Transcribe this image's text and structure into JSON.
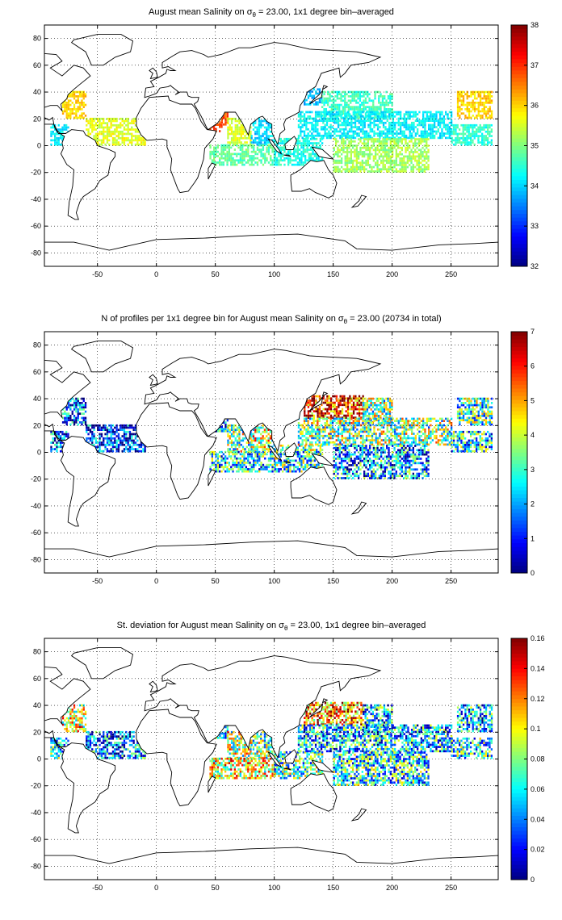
{
  "chart_data": [
    {
      "type": "heatmap",
      "title": "August mean Salinity onσθ = 23.00, 1x1 degree bin–averaged",
      "title_parts": {
        "pre": "August mean Salinity on ",
        "sigma": "σ",
        "sub": "θ",
        "post": " = 23.00, 1x1 degree bin–averaged"
      },
      "xlim": [
        -95,
        290
      ],
      "ylim": [
        -90,
        90
      ],
      "xticks": [
        -50,
        0,
        50,
        100,
        150,
        200,
        250
      ],
      "yticks": [
        -80,
        -60,
        -40,
        -20,
        0,
        20,
        40,
        60,
        80
      ],
      "grid": true,
      "colorbar": {
        "range": [
          32,
          38
        ],
        "ticks": [
          32,
          33,
          34,
          35,
          36,
          37,
          38
        ],
        "colormap": "jet"
      },
      "regions": [
        {
          "lon": [
            -80,
            -60
          ],
          "lat": [
            20,
            40
          ],
          "value": 36.0
        },
        {
          "lon": [
            -90,
            -75
          ],
          "lat": [
            0,
            15
          ],
          "value": 34.2
        },
        {
          "lon": [
            -60,
            -10
          ],
          "lat": [
            0,
            20
          ],
          "value": 35.6
        },
        {
          "lon": [
            50,
            60
          ],
          "lat": [
            15,
            25
          ],
          "value": 36.8
        },
        {
          "lon": [
            45,
            55
          ],
          "lat": [
            10,
            15
          ],
          "value": 37.0
        },
        {
          "lon": [
            60,
            80
          ],
          "lat": [
            0,
            20
          ],
          "value": 35.5
        },
        {
          "lon": [
            80,
            100
          ],
          "lat": [
            0,
            20
          ],
          "value": 34.0
        },
        {
          "lon": [
            45,
            100
          ],
          "lat": [
            -15,
            0
          ],
          "value": 34.8
        },
        {
          "lon": [
            100,
            140
          ],
          "lat": [
            -15,
            5
          ],
          "value": 34.4
        },
        {
          "lon": [
            125,
            140
          ],
          "lat": [
            30,
            42
          ],
          "value": 33.8
        },
        {
          "lon": [
            140,
            200
          ],
          "lat": [
            20,
            40
          ],
          "value": 34.6
        },
        {
          "lon": [
            120,
            250
          ],
          "lat": [
            5,
            25
          ],
          "value": 34.2
        },
        {
          "lon": [
            150,
            230
          ],
          "lat": [
            -20,
            5
          ],
          "value": 35.2
        },
        {
          "lon": [
            255,
            285
          ],
          "lat": [
            20,
            40
          ],
          "value": 36.0
        },
        {
          "lon": [
            250,
            285
          ],
          "lat": [
            0,
            15
          ],
          "value": 34.5
        }
      ]
    },
    {
      "type": "heatmap",
      "title": "N of profiles per 1x1 degree bin for August mean Salinity onσθ = 23.00 (20734 in total)",
      "title_parts": {
        "pre": "N of profiles per 1x1 degree bin for August mean Salinity on ",
        "sigma": "σ",
        "sub": "θ",
        "post": " = 23.00 (20734 in total)"
      },
      "xlim": [
        -95,
        290
      ],
      "ylim": [
        -90,
        90
      ],
      "xticks": [
        -50,
        0,
        50,
        100,
        150,
        200,
        250
      ],
      "yticks": [
        -80,
        -60,
        -40,
        -20,
        0,
        20,
        40,
        60,
        80
      ],
      "grid": true,
      "colorbar": {
        "range": [
          0,
          7
        ],
        "ticks": [
          0,
          1,
          2,
          3,
          4,
          5,
          6,
          7
        ],
        "colormap": "jet"
      },
      "regions": [
        {
          "lon": [
            -80,
            -60
          ],
          "lat": [
            20,
            40
          ],
          "value": 1.5
        },
        {
          "lon": [
            -90,
            -75
          ],
          "lat": [
            0,
            15
          ],
          "value": 1.5
        },
        {
          "lon": [
            -60,
            -10
          ],
          "lat": [
            0,
            20
          ],
          "value": 1.0
        },
        {
          "lon": [
            50,
            60
          ],
          "lat": [
            15,
            25
          ],
          "value": 2.0
        },
        {
          "lon": [
            60,
            80
          ],
          "lat": [
            0,
            20
          ],
          "value": 3.5
        },
        {
          "lon": [
            80,
            100
          ],
          "lat": [
            0,
            20
          ],
          "value": 4.0
        },
        {
          "lon": [
            45,
            100
          ],
          "lat": [
            -15,
            0
          ],
          "value": 2.5
        },
        {
          "lon": [
            100,
            140
          ],
          "lat": [
            -15,
            5
          ],
          "value": 3.0
        },
        {
          "lon": [
            125,
            175
          ],
          "lat": [
            25,
            42
          ],
          "value": 6.0
        },
        {
          "lon": [
            175,
            200
          ],
          "lat": [
            20,
            40
          ],
          "value": 3.5
        },
        {
          "lon": [
            120,
            250
          ],
          "lat": [
            5,
            25
          ],
          "value": 3.5
        },
        {
          "lon": [
            150,
            230
          ],
          "lat": [
            -20,
            5
          ],
          "value": 2.0
        },
        {
          "lon": [
            255,
            285
          ],
          "lat": [
            20,
            40
          ],
          "value": 3.0
        },
        {
          "lon": [
            250,
            285
          ],
          "lat": [
            0,
            15
          ],
          "value": 2.5
        }
      ]
    },
    {
      "type": "heatmap",
      "title": "St. deviation for August mean Salinity onσθ = 23.00, 1x1 degree bin–averaged",
      "title_parts": {
        "pre": "St. deviation for August mean Salinity on ",
        "sigma": "σ",
        "sub": "θ",
        "post": " = 23.00, 1x1 degree bin–averaged"
      },
      "xlim": [
        -95,
        290
      ],
      "ylim": [
        -90,
        90
      ],
      "xticks": [
        -50,
        0,
        50,
        100,
        150,
        200,
        250
      ],
      "yticks": [
        -80,
        -60,
        -40,
        -20,
        0,
        20,
        40,
        60,
        80
      ],
      "grid": true,
      "colorbar": {
        "range": [
          0,
          0.16
        ],
        "ticks": [
          0,
          0.02,
          0.04,
          0.06,
          0.08,
          0.1,
          0.12,
          0.14,
          0.16
        ],
        "colormap": "jet"
      },
      "regions": [
        {
          "lon": [
            -80,
            -60
          ],
          "lat": [
            20,
            40
          ],
          "value": 0.1
        },
        {
          "lon": [
            -90,
            -75
          ],
          "lat": [
            0,
            15
          ],
          "value": 0.06
        },
        {
          "lon": [
            -60,
            -10
          ],
          "lat": [
            0,
            20
          ],
          "value": 0.04
        },
        {
          "lon": [
            50,
            60
          ],
          "lat": [
            15,
            25
          ],
          "value": 0.06
        },
        {
          "lon": [
            60,
            80
          ],
          "lat": [
            0,
            20
          ],
          "value": 0.09
        },
        {
          "lon": [
            80,
            100
          ],
          "lat": [
            0,
            20
          ],
          "value": 0.08
        },
        {
          "lon": [
            45,
            100
          ],
          "lat": [
            -15,
            0
          ],
          "value": 0.1
        },
        {
          "lon": [
            100,
            140
          ],
          "lat": [
            -15,
            5
          ],
          "value": 0.07
        },
        {
          "lon": [
            125,
            175
          ],
          "lat": [
            25,
            42
          ],
          "value": 0.12
        },
        {
          "lon": [
            175,
            200
          ],
          "lat": [
            20,
            40
          ],
          "value": 0.05
        },
        {
          "lon": [
            120,
            250
          ],
          "lat": [
            5,
            25
          ],
          "value": 0.05
        },
        {
          "lon": [
            150,
            230
          ],
          "lat": [
            -20,
            5
          ],
          "value": 0.06
        },
        {
          "lon": [
            255,
            285
          ],
          "lat": [
            20,
            40
          ],
          "value": 0.05
        },
        {
          "lon": [
            250,
            285
          ],
          "lat": [
            0,
            15
          ],
          "value": 0.06
        }
      ]
    }
  ]
}
